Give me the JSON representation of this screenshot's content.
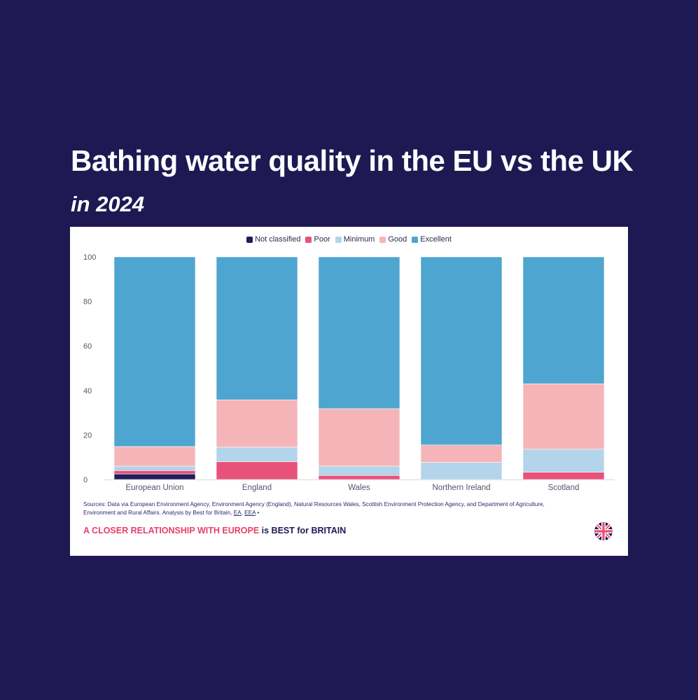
{
  "header": {
    "title": "Bathing water quality in the EU vs the UK",
    "subtitle": "in 2024"
  },
  "legend": [
    {
      "label": "Not classified",
      "color": "#1e1e5a"
    },
    {
      "label": "Poor",
      "color": "#e8517a"
    },
    {
      "label": "Minimum",
      "color": "#b3d4ea"
    },
    {
      "label": "Good",
      "color": "#f5b5b8"
    },
    {
      "label": "Excellent",
      "color": "#4ea5d0"
    }
  ],
  "chart_data": {
    "type": "bar",
    "stacked": true,
    "categories": [
      "European Union",
      "England",
      "Wales",
      "Northern Ireland",
      "Scotland"
    ],
    "series": [
      {
        "name": "Not classified",
        "color": "#1e1e5a",
        "values": [
          2.5,
          0,
          0,
          0,
          0
        ]
      },
      {
        "name": "Poor",
        "color": "#e8517a",
        "values": [
          1.5,
          8,
          1.8,
          0,
          3.3
        ]
      },
      {
        "name": "Minimum",
        "color": "#b3d4ea",
        "values": [
          2.0,
          6.5,
          4.2,
          7.7,
          10.3
        ]
      },
      {
        "name": "Good",
        "color": "#f5b5b8",
        "values": [
          8.8,
          21.3,
          25.8,
          7.8,
          29.4
        ]
      },
      {
        "name": "Excellent",
        "color": "#4ea5d0",
        "values": [
          85.2,
          64.2,
          68.2,
          84.5,
          57.0
        ]
      }
    ],
    "ylim": [
      0,
      100
    ],
    "yticks": [
      0,
      20,
      40,
      60,
      80,
      100
    ],
    "grid": false,
    "legend_position": "top-center"
  },
  "footer": {
    "sources_text": "Sources: Data via European Environment Agency, Environment Agency (England), Natural Resources Wales, Scottish Environment Protection Agency, and Department of Agriculture, Environment and Rural Affairs. Analysis by Best for Britain, ",
    "link_ea": "EA",
    "link_eea": "EEA",
    "sources_end": " •",
    "tagline_pink": "A CLOSER RELATIONSHIP WITH EUROPE",
    "tagline_navy": " is BEST for BRITAIN",
    "logo_icon": "union-flag-circle-icon"
  }
}
